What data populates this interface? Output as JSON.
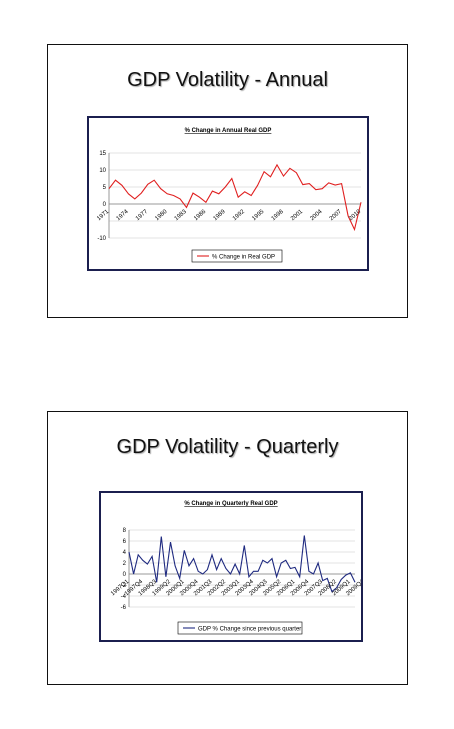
{
  "slides": [
    {
      "title": "GDP Volatility - Annual",
      "chart_data": {
        "type": "line",
        "title": "% Change in Annual Real GDP",
        "legend": {
          "label": "% Change in Real GDP",
          "position": "bottom"
        },
        "ylim": [
          -10,
          15
        ],
        "yticks": [
          -10,
          -5,
          0,
          5,
          10,
          15
        ],
        "ytick_labels": [
          "-10",
          "",
          "0",
          "5",
          "10",
          "15"
        ],
        "xtick_labels": [
          "1971",
          "1974",
          "1977",
          "1980",
          "1983",
          "1986",
          "1989",
          "1992",
          "1995",
          "1998",
          "2001",
          "2004",
          "2007",
          "2010"
        ],
        "grid": true,
        "series": [
          {
            "color": "#e02020",
            "x": [
              1971,
              1972,
              1973,
              1974,
              1975,
              1976,
              1977,
              1978,
              1979,
              1980,
              1981,
              1982,
              1983,
              1984,
              1985,
              1986,
              1987,
              1988,
              1989,
              1990,
              1991,
              1992,
              1993,
              1994,
              1995,
              1996,
              1997,
              1998,
              1999,
              2000,
              2001,
              2002,
              2003,
              2004,
              2005,
              2006,
              2007,
              2008,
              2009,
              2010
            ],
            "values": [
              4.5,
              7,
              5.5,
              3,
              1.5,
              3.2,
              5.8,
              7,
              4.5,
              3,
              2.5,
              1.5,
              -1,
              3.2,
              2,
              0.5,
              3.8,
              3,
              5,
              7.5,
              2,
              3.6,
              2.5,
              5.5,
              9.5,
              8,
              11.5,
              8.2,
              10.5,
              9.2,
              5.7,
              6,
              4.2,
              4.5,
              6.2,
              5.6,
              6,
              -3.5,
              -7.5,
              0.5
            ]
          }
        ]
      }
    },
    {
      "title": "GDP Volatility - Quarterly",
      "chart_data": {
        "type": "line",
        "title": "% Change in Quarterly Real GDP",
        "legend": {
          "label": "GDP % Change since previous quarter",
          "position": "bottom"
        },
        "ylim": [
          -6,
          8
        ],
        "yticks": [
          -6,
          -4,
          -2,
          0,
          2,
          4,
          6,
          8
        ],
        "ytick_labels": [
          "-6",
          "-4",
          "-2",
          "0",
          "2",
          "4",
          "6",
          "8"
        ],
        "xtick_labels": [
          "1997Q1",
          "1997Q4",
          "1998Q3",
          "1999Q2",
          "2000Q1",
          "2000Q4",
          "2001Q3",
          "2002Q2",
          "2003Q1",
          "2003Q4",
          "2004Q3",
          "2005Q2",
          "2006Q1",
          "2006Q4",
          "2007Q3",
          "2008Q2",
          "2009Q1",
          "2009Q4"
        ],
        "grid": true,
        "series": [
          {
            "color": "#1f2a80",
            "values": [
              4,
              0,
              3.5,
              2.5,
              1.8,
              3.2,
              -1.5,
              6.8,
              -0.5,
              5.8,
              1.5,
              -0.8,
              4.3,
              1.5,
              2.8,
              0.5,
              0,
              0.8,
              3.5,
              0.8,
              2.8,
              1,
              0,
              1.8,
              0,
              5.2,
              -0.5,
              0.5,
              0.5,
              2.5,
              2,
              2.8,
              -0.5,
              2,
              2.5,
              1,
              1.2,
              -0.5,
              7,
              0.5,
              0,
              2,
              -1.2,
              -0.8,
              -3.2,
              -2.5,
              -1,
              -0.2,
              0.2,
              -1.5
            ]
          }
        ]
      }
    }
  ]
}
